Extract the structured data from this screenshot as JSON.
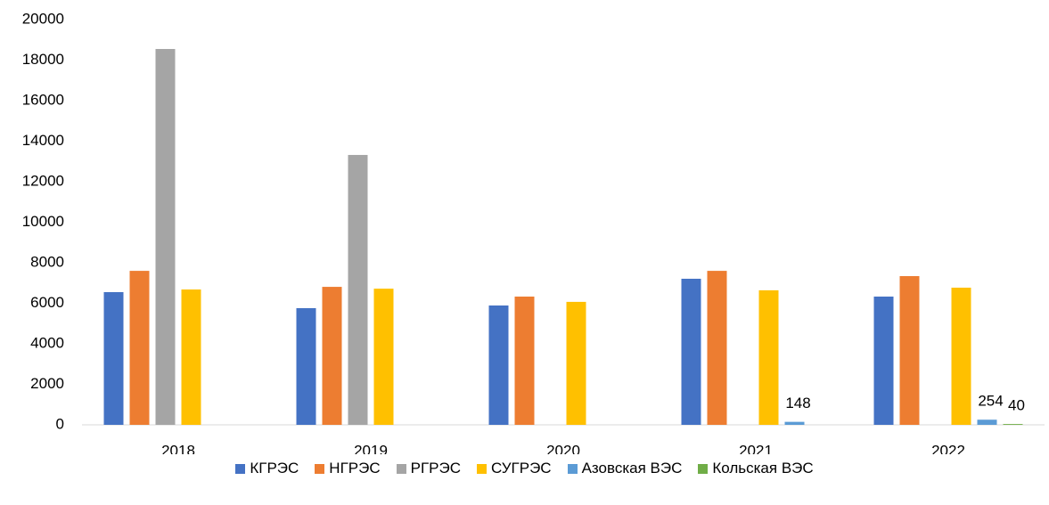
{
  "chart_data": {
    "type": "bar",
    "categories": [
      "2018",
      "2019",
      "2020",
      "2021",
      "2022"
    ],
    "series": [
      {
        "name": "КГРЭС",
        "color": "#4472c4",
        "values": [
          6550,
          5760,
          5890,
          7210,
          6330
        ]
      },
      {
        "name": "НГРЭС",
        "color": "#ed7d31",
        "values": [
          7600,
          6810,
          6330,
          7600,
          7340
        ]
      },
      {
        "name": "РГРЭС",
        "color": "#a5a5a5",
        "values": [
          18550,
          13320,
          null,
          null,
          null
        ]
      },
      {
        "name": "СУГРЭС",
        "color": "#ffc000",
        "values": [
          6680,
          6720,
          6070,
          6640,
          6770
        ]
      },
      {
        "name": "Азовская ВЭС",
        "color": "#5b9bd5",
        "values": [
          null,
          null,
          null,
          148,
          254
        ],
        "show_labels": true
      },
      {
        "name": "Кольская ВЭС",
        "color": "#70ad47",
        "values": [
          null,
          null,
          null,
          null,
          40
        ],
        "show_labels": true
      }
    ],
    "ylim": [
      0,
      20000
    ],
    "yticks": [
      0,
      2000,
      4000,
      6000,
      8000,
      10000,
      12000,
      14000,
      16000,
      18000,
      20000
    ],
    "grid": false,
    "legend": "bottom"
  }
}
